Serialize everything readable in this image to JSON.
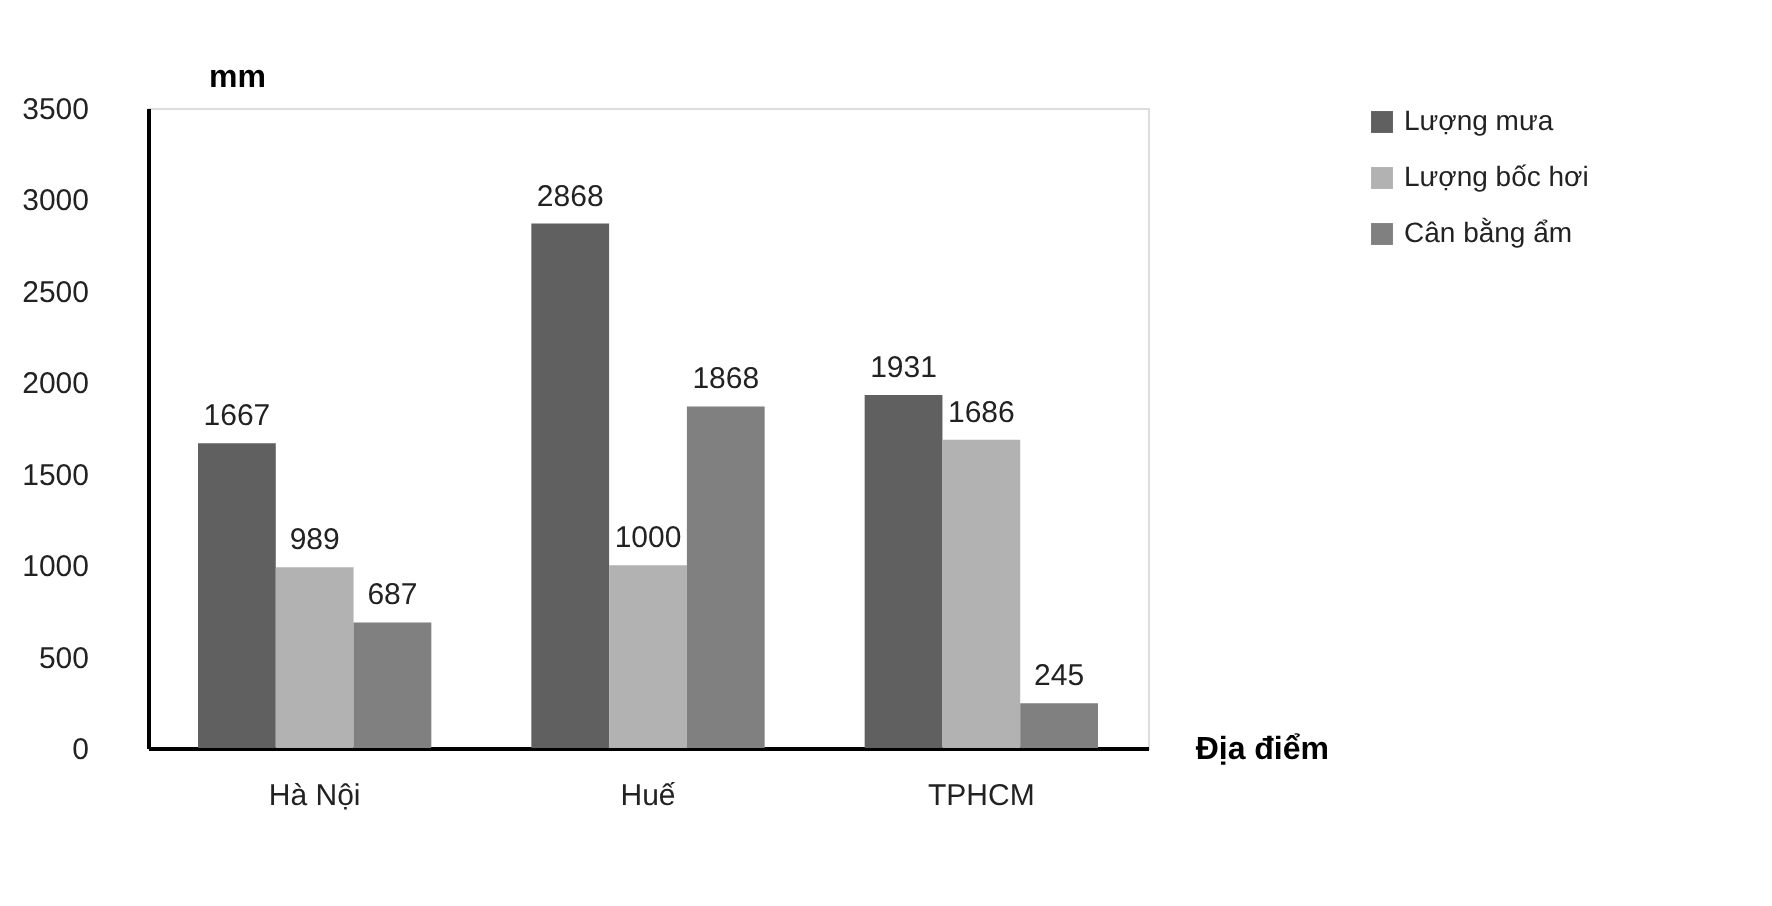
{
  "chart_data": {
    "type": "bar",
    "xlabel": "Địa điểm",
    "ylabel": "mm",
    "categories": [
      "Hà Nội",
      "Huế",
      "TPHCM"
    ],
    "series": [
      {
        "name": "Lượng mưa",
        "color": "#606060",
        "values": [
          1667,
          2868,
          1931
        ]
      },
      {
        "name": "Lượng bốc hơi",
        "color": "#b2b2b2",
        "values": [
          989,
          1000,
          1686
        ]
      },
      {
        "name": "Cân bằng ẩm",
        "color": "#808080",
        "values": [
          687,
          1868,
          245
        ]
      }
    ],
    "ylim": [
      0,
      3500
    ],
    "yticks": [
      0,
      500,
      1000,
      1500,
      2000,
      2500,
      3000,
      3500
    ],
    "data_labels": true,
    "grid": false,
    "legend": "right"
  }
}
